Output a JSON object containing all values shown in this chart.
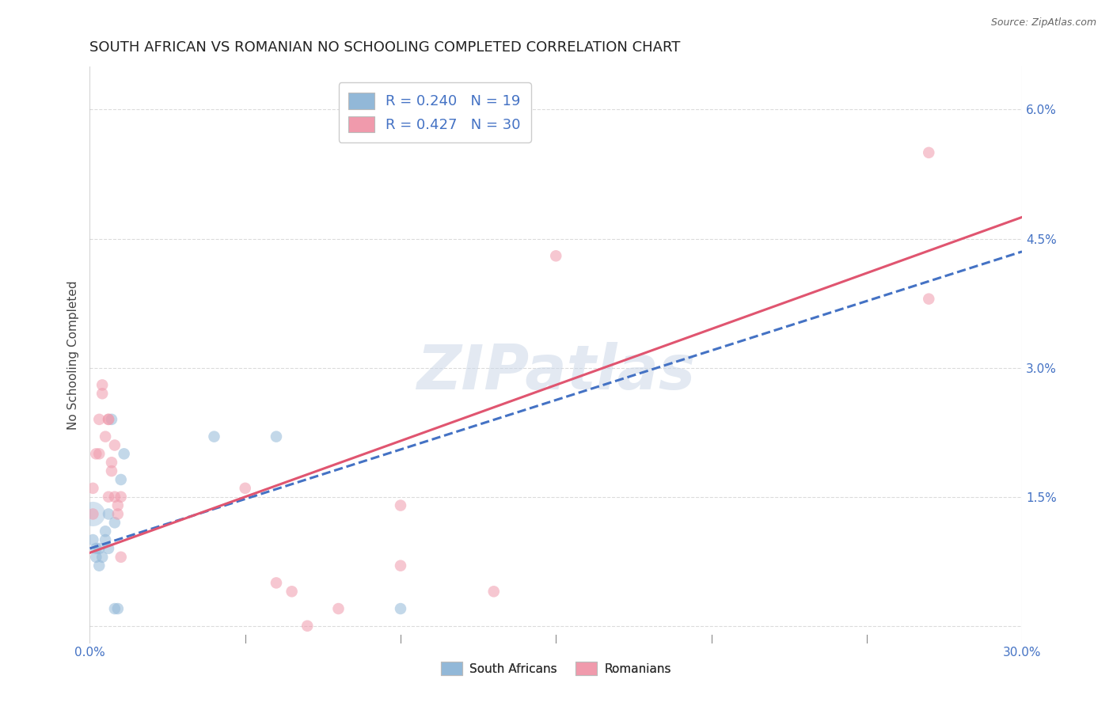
{
  "title": "SOUTH AFRICAN VS ROMANIAN NO SCHOOLING COMPLETED CORRELATION CHART",
  "source": "Source: ZipAtlas.com",
  "ylabel": "No Schooling Completed",
  "watermark": "ZIPatlas",
  "xlim": [
    0.0,
    0.3
  ],
  "ylim": [
    -0.002,
    0.065
  ],
  "xticks": [
    0.0,
    0.05,
    0.1,
    0.15,
    0.2,
    0.25,
    0.3
  ],
  "xtick_labels_bottom": [
    "0.0%",
    "",
    "",
    "",
    "",
    "",
    "30.0%"
  ],
  "yticks_right": [
    0.0,
    0.015,
    0.03,
    0.045,
    0.06
  ],
  "ytick_labels_right": [
    "",
    "1.5%",
    "3.0%",
    "4.5%",
    "6.0%"
  ],
  "sa_color": "#92b8d8",
  "rom_color": "#f09aac",
  "sa_alpha": 0.55,
  "rom_alpha": 0.55,
  "sa_line_color": "#4472c4",
  "rom_line_color": "#e05570",
  "tick_color": "#4472c4",
  "background_color": "#ffffff",
  "grid_color": "#cccccc",
  "grid_alpha": 0.7,
  "sa_x": [
    0.001,
    0.002,
    0.002,
    0.003,
    0.003,
    0.004,
    0.005,
    0.005,
    0.006,
    0.006,
    0.007,
    0.008,
    0.008,
    0.009,
    0.01,
    0.011,
    0.04,
    0.06,
    0.1
  ],
  "sa_y": [
    0.01,
    0.008,
    0.009,
    0.009,
    0.007,
    0.008,
    0.01,
    0.011,
    0.013,
    0.009,
    0.024,
    0.012,
    0.002,
    0.002,
    0.017,
    0.02,
    0.022,
    0.022,
    0.002
  ],
  "rom_x": [
    0.001,
    0.001,
    0.002,
    0.003,
    0.003,
    0.004,
    0.004,
    0.005,
    0.006,
    0.006,
    0.006,
    0.007,
    0.007,
    0.008,
    0.008,
    0.009,
    0.009,
    0.01,
    0.01,
    0.05,
    0.06,
    0.065,
    0.07,
    0.08,
    0.1,
    0.1,
    0.13,
    0.15,
    0.27,
    0.27
  ],
  "rom_y": [
    0.013,
    0.016,
    0.02,
    0.02,
    0.024,
    0.028,
    0.027,
    0.022,
    0.024,
    0.024,
    0.015,
    0.018,
    0.019,
    0.021,
    0.015,
    0.013,
    0.014,
    0.015,
    0.008,
    0.016,
    0.005,
    0.004,
    0.0,
    0.002,
    0.014,
    0.007,
    0.004,
    0.043,
    0.038,
    0.055
  ],
  "big_sa_x": [
    0.001
  ],
  "big_sa_y": [
    0.013
  ],
  "big_sa_size": 500,
  "marker_size": 110,
  "legend_sa_label": "R = 0.240   N = 19",
  "legend_rom_label": "R = 0.427   N = 30",
  "legend_sa_bottom": "South Africans",
  "legend_rom_bottom": "Romanians",
  "sa_intercept": 0.009,
  "sa_slope": 0.115,
  "rom_intercept": 0.0085,
  "rom_slope": 0.13
}
